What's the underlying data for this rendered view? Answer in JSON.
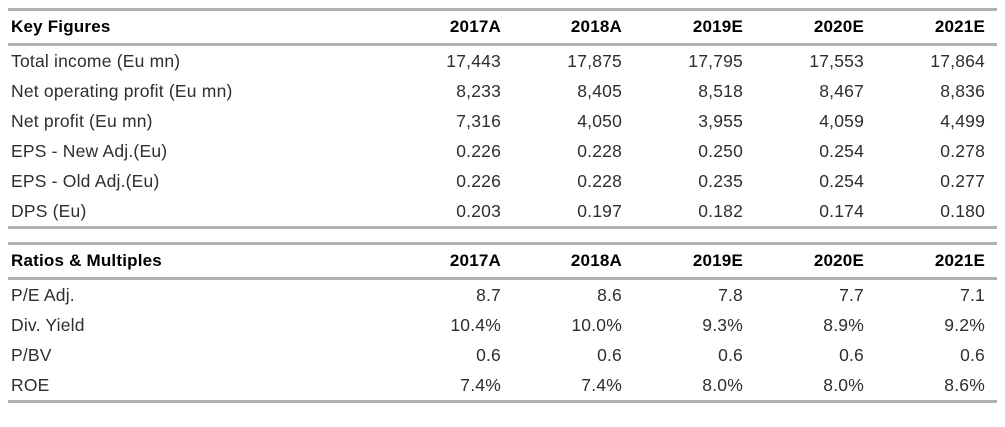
{
  "colors": {
    "rule": "#b1b1b1",
    "header_text": "#000000",
    "body_text": "#2e2e2e",
    "background": "#ffffff"
  },
  "tables": [
    {
      "title": "Key Figures",
      "columns": [
        "2017A",
        "2018A",
        "2019E",
        "2020E",
        "2021E"
      ],
      "rows": [
        {
          "label": "Total income (Eu mn)",
          "values": [
            "17,443",
            "17,875",
            "17,795",
            "17,553",
            "17,864"
          ]
        },
        {
          "label": "Net operating profit (Eu mn)",
          "values": [
            "8,233",
            "8,405",
            "8,518",
            "8,467",
            "8,836"
          ]
        },
        {
          "label": "Net profit (Eu mn)",
          "values": [
            "7,316",
            "4,050",
            "3,955",
            "4,059",
            "4,499"
          ]
        },
        {
          "label": "EPS - New Adj.(Eu)",
          "values": [
            "0.226",
            "0.228",
            "0.250",
            "0.254",
            "0.278"
          ]
        },
        {
          "label": "EPS - Old Adj.(Eu)",
          "values": [
            "0.226",
            "0.228",
            "0.235",
            "0.254",
            "0.277"
          ]
        },
        {
          "label": "DPS (Eu)",
          "values": [
            "0.203",
            "0.197",
            "0.182",
            "0.174",
            "0.180"
          ]
        }
      ]
    },
    {
      "title": "Ratios & Multiples",
      "columns": [
        "2017A",
        "2018A",
        "2019E",
        "2020E",
        "2021E"
      ],
      "rows": [
        {
          "label": "P/E Adj.",
          "values": [
            "8.7",
            "8.6",
            "7.8",
            "7.7",
            "7.1"
          ]
        },
        {
          "label": "Div. Yield",
          "values": [
            "10.4%",
            "10.0%",
            "9.3%",
            "8.9%",
            "9.2%"
          ]
        },
        {
          "label": "P/BV",
          "values": [
            "0.6",
            "0.6",
            "0.6",
            "0.6",
            "0.6"
          ]
        },
        {
          "label": "ROE",
          "values": [
            "7.4%",
            "7.4%",
            "8.0%",
            "8.0%",
            "8.6%"
          ]
        }
      ]
    }
  ]
}
